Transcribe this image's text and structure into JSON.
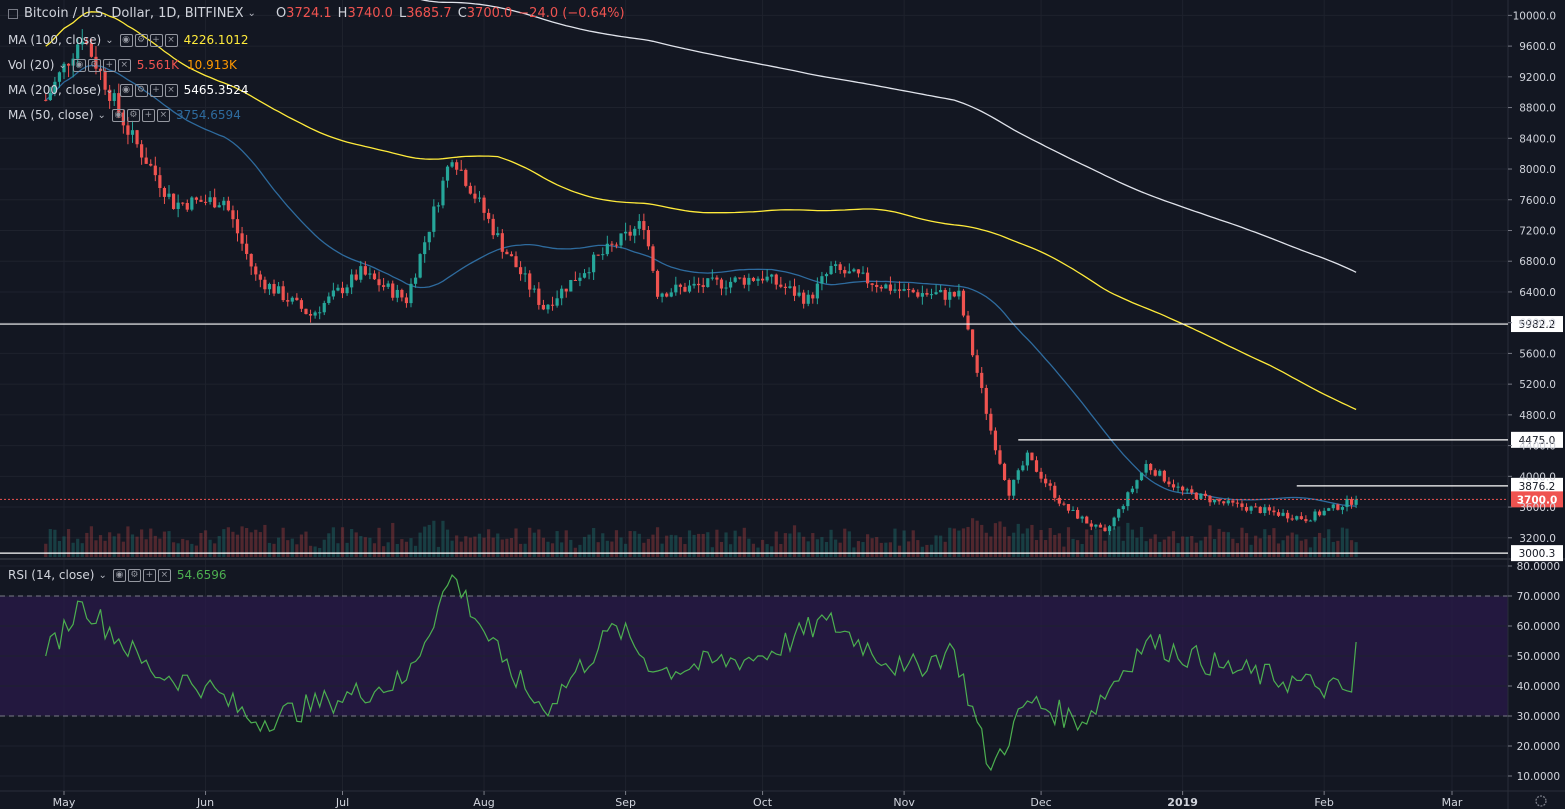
{
  "header": {
    "symbol_title": "Bitcoin / U.S. Dollar, 1D, BITFINEX",
    "ohlc": {
      "open_label": "O",
      "open": "3724.1",
      "high_label": "H",
      "high": "3740.0",
      "low_label": "L",
      "low": "3685.7",
      "close_label": "C",
      "close": "3700.0",
      "change": "−24.0 (−0.64%)"
    }
  },
  "indicators": [
    {
      "name": "MA (100, close)",
      "values": [
        "4226.1012"
      ],
      "colors": [
        "#ffeb3b"
      ]
    },
    {
      "name": "Vol (20)",
      "values": [
        "5.561K",
        "10.913K"
      ],
      "colors": [
        "#ef5350",
        "#ff9800"
      ]
    },
    {
      "name": "MA (200, close)",
      "values": [
        "5465.3524"
      ],
      "colors": [
        "#ffffff"
      ]
    },
    {
      "name": "MA (50, close)",
      "values": [
        "3754.6594"
      ],
      "colors": [
        "#2e6b9e"
      ]
    }
  ],
  "rsi_legend": {
    "name": "RSI (14, close)",
    "value": "54.6596",
    "color": "#4caf50"
  },
  "colors": {
    "background": "#131722",
    "up": "#26a69a",
    "down": "#ef5350",
    "ma50": "#2e6b9e",
    "ma100": "#ffeb3b",
    "ma200": "#e0e3eb",
    "rsi_line": "#4caf50",
    "rsi_band": "#2a1a4a"
  },
  "chart_data": [
    {
      "type": "candlestick",
      "title": "Bitcoin / U.S. Dollar, 1D, BITFINEX",
      "x": [
        "May",
        "Jun",
        "Jul",
        "Aug",
        "Sep",
        "Oct",
        "Nov",
        "Dec",
        "2019",
        "Feb",
        "Mar"
      ],
      "x_dates": [
        "2018-05-01",
        "2018-06-01",
        "2018-07-01",
        "2018-08-01",
        "2018-09-01",
        "2018-10-01",
        "2018-11-01",
        "2018-12-01",
        "2019-01-01",
        "2019-02-01",
        "2019-03-01"
      ],
      "ylim": [
        2950,
        10200
      ],
      "y_ticks": [
        "3200.0",
        "3600.0",
        "4000.0",
        "4400.0",
        "4800.0",
        "5200.0",
        "5600.0",
        "6000.0",
        "6400.0",
        "6800.0",
        "7200.0",
        "7600.0",
        "8000.0",
        "8400.0",
        "8800.0",
        "9200.0",
        "9600.0",
        "10000.0"
      ],
      "price_trace": [
        {
          "date": "2018-04-27",
          "close": 8900
        },
        {
          "date": "2018-05-05",
          "close": 9750
        },
        {
          "date": "2018-05-15",
          "close": 8500
        },
        {
          "date": "2018-05-25",
          "close": 7550
        },
        {
          "date": "2018-06-05",
          "close": 7600
        },
        {
          "date": "2018-06-12",
          "close": 6600
        },
        {
          "date": "2018-06-24",
          "close": 6100
        },
        {
          "date": "2018-07-05",
          "close": 6650
        },
        {
          "date": "2018-07-15",
          "close": 6300
        },
        {
          "date": "2018-07-25",
          "close": 8200
        },
        {
          "date": "2018-08-05",
          "close": 7000
        },
        {
          "date": "2018-08-14",
          "close": 6200
        },
        {
          "date": "2018-08-25",
          "close": 6800
        },
        {
          "date": "2018-09-05",
          "close": 7300
        },
        {
          "date": "2018-09-08",
          "close": 6400
        },
        {
          "date": "2018-09-20",
          "close": 6500
        },
        {
          "date": "2018-10-01",
          "close": 6600
        },
        {
          "date": "2018-10-11",
          "close": 6300
        },
        {
          "date": "2018-10-16",
          "close": 6700
        },
        {
          "date": "2018-11-01",
          "close": 6400
        },
        {
          "date": "2018-11-13",
          "close": 6350
        },
        {
          "date": "2018-11-16",
          "close": 5600
        },
        {
          "date": "2018-11-20",
          "close": 4600
        },
        {
          "date": "2018-11-24",
          "close": 3800
        },
        {
          "date": "2018-11-28",
          "close": 4250
        },
        {
          "date": "2018-12-06",
          "close": 3600
        },
        {
          "date": "2018-12-15",
          "close": 3250
        },
        {
          "date": "2018-12-24",
          "close": 4150
        },
        {
          "date": "2019-01-01",
          "close": 3800
        },
        {
          "date": "2019-01-10",
          "close": 3650
        },
        {
          "date": "2019-01-28",
          "close": 3450
        },
        {
          "date": "2019-02-08",
          "close": 3700
        }
      ],
      "ma_series": [
        {
          "name": "MA (200, close)",
          "last": 5465.3524
        },
        {
          "name": "MA (100, close)",
          "last": 4226.1012
        },
        {
          "name": "MA (50, close)",
          "last": 3754.6594
        }
      ],
      "horizontal_levels": [
        {
          "label": "5982.2",
          "value": 5982.2
        },
        {
          "label": "4475.0",
          "value": 4475.0
        },
        {
          "label": "3876.2",
          "value": 3876.2
        },
        {
          "label": "3000.3",
          "value": 3000.3
        }
      ],
      "last_price": {
        "label": "3700.0",
        "value": 3700.0
      }
    },
    {
      "type": "line",
      "title": "RSI (14, close)",
      "ylim": [
        5,
        82
      ],
      "y_ticks": [
        "10.0000",
        "20.0000",
        "30.0000",
        "40.0000",
        "50.0000",
        "60.0000",
        "70.0000",
        "80.0000"
      ],
      "band": [
        30,
        70
      ],
      "series": [
        {
          "name": "RSI (14, close)",
          "points": [
            {
              "date": "2018-04-27",
              "value": 50
            },
            {
              "date": "2018-05-05",
              "value": 68
            },
            {
              "date": "2018-05-20",
              "value": 45
            },
            {
              "date": "2018-06-01",
              "value": 40
            },
            {
              "date": "2018-06-12",
              "value": 28
            },
            {
              "date": "2018-06-28",
              "value": 35
            },
            {
              "date": "2018-07-15",
              "value": 42
            },
            {
              "date": "2018-07-25",
              "value": 77
            },
            {
              "date": "2018-08-05",
              "value": 48
            },
            {
              "date": "2018-08-14",
              "value": 32
            },
            {
              "date": "2018-08-30",
              "value": 60
            },
            {
              "date": "2018-09-08",
              "value": 45
            },
            {
              "date": "2018-10-01",
              "value": 50
            },
            {
              "date": "2018-10-15",
              "value": 62
            },
            {
              "date": "2018-11-01",
              "value": 45
            },
            {
              "date": "2018-11-12",
              "value": 52
            },
            {
              "date": "2018-11-20",
              "value": 12
            },
            {
              "date": "2018-11-28",
              "value": 35
            },
            {
              "date": "2018-12-10",
              "value": 28
            },
            {
              "date": "2018-12-24",
              "value": 55
            },
            {
              "date": "2019-01-10",
              "value": 46
            },
            {
              "date": "2019-01-30",
              "value": 40
            },
            {
              "date": "2019-02-07",
              "value": 38
            },
            {
              "date": "2019-02-08",
              "value": 54.66
            }
          ]
        }
      ]
    }
  ]
}
